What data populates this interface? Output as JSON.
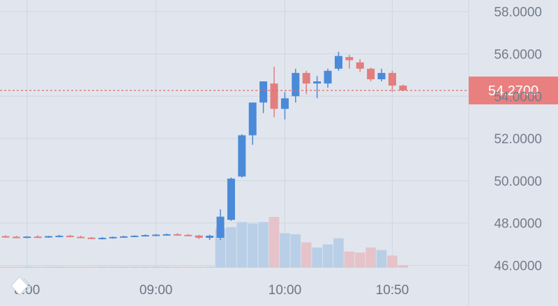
{
  "chart_data": {
    "type": "candlestick",
    "y_axis": {
      "ticks": [
        46,
        48,
        50,
        52,
        54,
        56,
        58
      ],
      "tick_labels": [
        "46.0000",
        "48.0000",
        "50.0000",
        "52.0000",
        "54.0000",
        "56.0000",
        "58.0000"
      ],
      "range": [
        45.95,
        58.55
      ]
    },
    "x_axis": {
      "ticks": [
        {
          "time": "08:00",
          "label": "8:00"
        },
        {
          "time": "09:00",
          "label": "09:00"
        },
        {
          "time": "10:00",
          "label": "10:00"
        },
        {
          "time": "10:50",
          "label": "10:50"
        }
      ]
    },
    "candles": [
      {
        "time": "07:50",
        "open": 47.38,
        "high": 47.42,
        "low": 47.3,
        "close": 47.35,
        "volume": 0.1
      },
      {
        "time": "07:55",
        "open": 47.35,
        "high": 47.4,
        "low": 47.28,
        "close": 47.33,
        "volume": 0.1
      },
      {
        "time": "08:00",
        "open": 47.33,
        "high": 47.38,
        "low": 47.28,
        "close": 47.36,
        "volume": 0.1
      },
      {
        "time": "08:05",
        "open": 47.36,
        "high": 47.42,
        "low": 47.3,
        "close": 47.34,
        "volume": 0.1
      },
      {
        "time": "08:10",
        "open": 47.34,
        "high": 47.4,
        "low": 47.3,
        "close": 47.38,
        "volume": 0.1
      },
      {
        "time": "08:15",
        "open": 47.38,
        "high": 47.44,
        "low": 47.32,
        "close": 47.4,
        "volume": 0.1
      },
      {
        "time": "08:20",
        "open": 47.4,
        "high": 47.44,
        "low": 47.32,
        "close": 47.35,
        "volume": 0.1
      },
      {
        "time": "08:25",
        "open": 47.35,
        "high": 47.4,
        "low": 47.28,
        "close": 47.31,
        "volume": 0.1
      },
      {
        "time": "08:30",
        "open": 47.31,
        "high": 47.34,
        "low": 47.24,
        "close": 47.27,
        "volume": 0.1
      },
      {
        "time": "08:35",
        "open": 47.27,
        "high": 47.34,
        "low": 47.22,
        "close": 47.3,
        "volume": 0.1
      },
      {
        "time": "08:40",
        "open": 47.3,
        "high": 47.36,
        "low": 47.26,
        "close": 47.34,
        "volume": 0.1
      },
      {
        "time": "08:45",
        "open": 47.34,
        "high": 47.4,
        "low": 47.3,
        "close": 47.37,
        "volume": 0.1
      },
      {
        "time": "08:50",
        "open": 47.37,
        "high": 47.42,
        "low": 47.33,
        "close": 47.4,
        "volume": 0.1
      },
      {
        "time": "08:55",
        "open": 47.4,
        "high": 47.46,
        "low": 47.36,
        "close": 47.43,
        "volume": 0.1
      },
      {
        "time": "09:00",
        "open": 47.43,
        "high": 47.48,
        "low": 47.38,
        "close": 47.45,
        "volume": 0.1
      },
      {
        "time": "09:05",
        "open": 47.45,
        "high": 47.5,
        "low": 47.4,
        "close": 47.47,
        "volume": 0.1
      },
      {
        "time": "09:10",
        "open": 47.47,
        "high": 47.52,
        "low": 47.4,
        "close": 47.44,
        "volume": 0.1
      },
      {
        "time": "09:15",
        "open": 47.44,
        "high": 47.48,
        "low": 47.38,
        "close": 47.41,
        "volume": 0.1
      },
      {
        "time": "09:20",
        "open": 47.41,
        "high": 47.44,
        "low": 47.24,
        "close": 47.3,
        "volume": 0.1
      },
      {
        "time": "09:25",
        "open": 47.3,
        "high": 47.45,
        "low": 47.2,
        "close": 47.4,
        "volume": 0.1
      },
      {
        "time": "09:30",
        "open": 47.3,
        "high": 48.65,
        "low": 47.2,
        "close": 48.3,
        "volume": 7.7
      },
      {
        "time": "09:35",
        "open": 48.15,
        "high": 50.15,
        "low": 48.1,
        "close": 50.1,
        "volume": 8.0
      },
      {
        "time": "09:40",
        "open": 50.2,
        "high": 52.2,
        "low": 50.15,
        "close": 52.15,
        "volume": 9.0
      },
      {
        "time": "09:45",
        "open": 52.15,
        "high": 53.7,
        "low": 51.7,
        "close": 53.7,
        "volume": 8.7
      },
      {
        "time": "09:50",
        "open": 53.7,
        "high": 54.7,
        "low": 53.2,
        "close": 54.7,
        "volume": 9.0
      },
      {
        "time": "09:55",
        "open": 54.6,
        "high": 55.4,
        "low": 53.0,
        "close": 53.4,
        "volume": 10.0
      },
      {
        "time": "10:00",
        "open": 53.4,
        "high": 54.2,
        "low": 52.9,
        "close": 53.9,
        "volume": 6.8
      },
      {
        "time": "10:05",
        "open": 54.0,
        "high": 55.3,
        "low": 53.7,
        "close": 55.1,
        "volume": 6.6
      },
      {
        "time": "10:10",
        "open": 55.1,
        "high": 55.2,
        "low": 54.1,
        "close": 54.6,
        "volume": 5.0
      },
      {
        "time": "10:15",
        "open": 54.6,
        "high": 54.95,
        "low": 53.9,
        "close": 54.7,
        "volume": 4.0
      },
      {
        "time": "10:20",
        "open": 54.6,
        "high": 55.3,
        "low": 54.4,
        "close": 55.2,
        "volume": 4.6
      },
      {
        "time": "10:25",
        "open": 55.3,
        "high": 56.1,
        "low": 55.2,
        "close": 55.9,
        "volume": 5.8
      },
      {
        "time": "10:30",
        "open": 55.85,
        "high": 55.95,
        "low": 55.3,
        "close": 55.7,
        "volume": 3.2
      },
      {
        "time": "10:35",
        "open": 55.6,
        "high": 55.75,
        "low": 55.15,
        "close": 55.3,
        "volume": 3.0
      },
      {
        "time": "10:40",
        "open": 55.3,
        "high": 55.35,
        "low": 54.7,
        "close": 54.8,
        "volume": 4.0
      },
      {
        "time": "10:45",
        "open": 54.8,
        "high": 55.3,
        "low": 54.7,
        "close": 55.1,
        "volume": 3.5
      },
      {
        "time": "10:50",
        "open": 55.1,
        "high": 55.2,
        "low": 54.2,
        "close": 54.5,
        "volume": 2.4
      },
      {
        "time": "10:55",
        "open": 54.5,
        "high": 54.55,
        "low": 54.25,
        "close": 54.27,
        "volume": 0.5
      }
    ],
    "last_price": 54.27,
    "last_price_label": "54.2700",
    "grid": true,
    "colors": {
      "up": "#4a8ad8",
      "down": "#e27e7e",
      "volume_up": "#b9cfe7",
      "volume_down": "#e6c2c9",
      "grid": "#cfd6e0",
      "price_line": "#e06a6a",
      "price_label_bg": "#e97f7f",
      "axis_text": "#727c8a",
      "background": "#e1e6ee"
    }
  }
}
